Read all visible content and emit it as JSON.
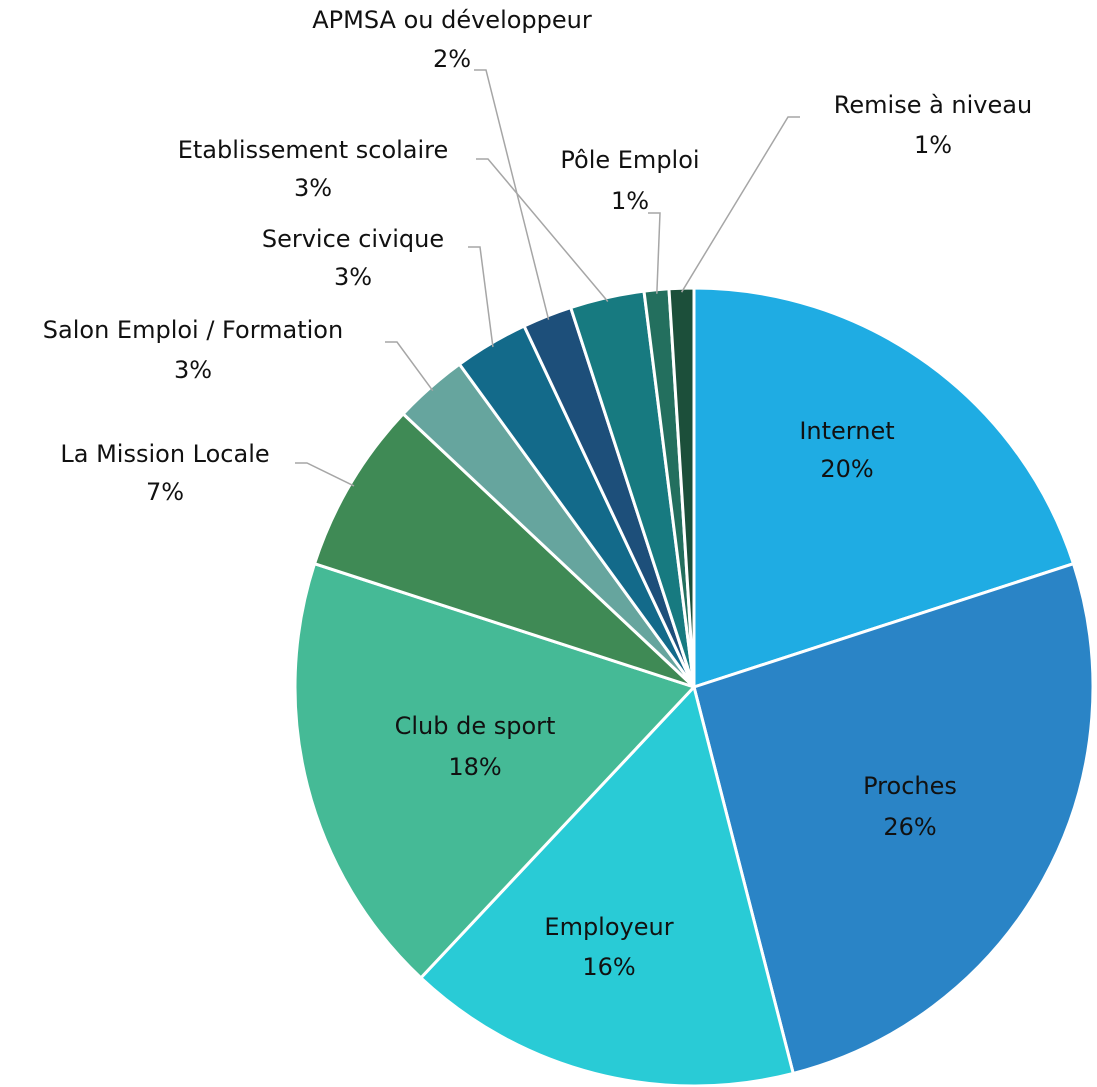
{
  "chart_data": {
    "type": "pie",
    "categories": [
      "Internet",
      "Proches",
      "Employeur",
      "Club de sport",
      "La Mission Locale",
      "Salon Emploi / Formation",
      "Service civique",
      "APMSA ou développeur",
      "Etablissement scolaire",
      "Pôle Emploi",
      "Remise à niveau"
    ],
    "values": [
      20,
      26,
      16,
      18,
      7,
      3,
      3,
      2,
      3,
      1,
      1
    ],
    "value_labels": [
      "20%",
      "26%",
      "16%",
      "18%",
      "7%",
      "3%",
      "3%",
      "2%",
      "3%",
      "1%",
      "1%"
    ],
    "colors": [
      "#1face3",
      "#2a84c6",
      "#29cbd6",
      "#45ba96",
      "#3f8a55",
      "#66a59e",
      "#136a8a",
      "#1d4f7a",
      "#177a80",
      "#236f5e",
      "#1c4f3a"
    ]
  }
}
